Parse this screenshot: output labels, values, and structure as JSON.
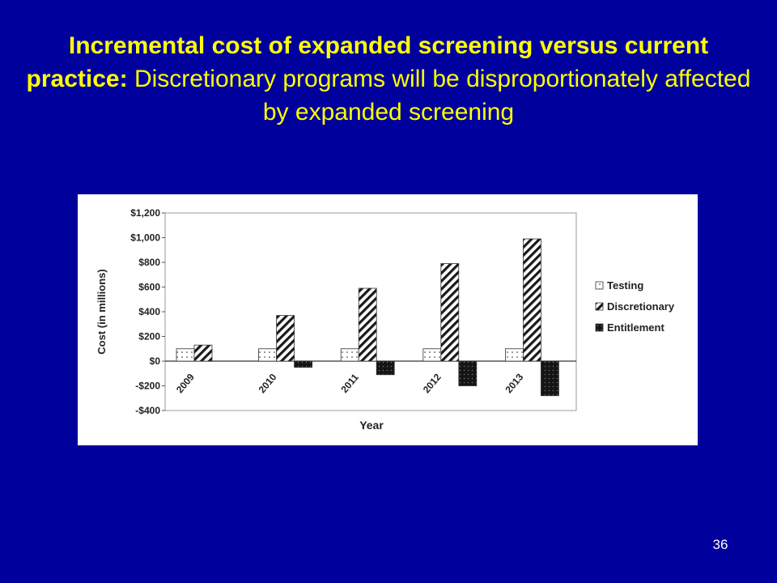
{
  "slide": {
    "title_bold": "Incremental cost of expanded screening versus current practice:",
    "title_normal": "Discretionary programs will be disproportionately affected by expanded screening",
    "page_number": "36"
  },
  "chart_data": {
    "type": "bar",
    "xlabel": "Year",
    "ylabel": "Cost (in millions)",
    "ylim": [
      -400,
      1200
    ],
    "yticks": [
      1200,
      1000,
      800,
      600,
      400,
      200,
      0,
      -200,
      -400
    ],
    "ytick_labels": [
      "$1,200",
      "$1,000",
      "$800",
      "$600",
      "$400",
      "$200",
      "$0",
      "-$200",
      "-$400"
    ],
    "categories": [
      "2009",
      "2010",
      "2011",
      "2012",
      "2013"
    ],
    "grid": false,
    "legend_position": "right",
    "series": [
      {
        "name": "Testing",
        "values": [
          100,
          100,
          100,
          100,
          100
        ],
        "pattern": "dots"
      },
      {
        "name": "Discretionary",
        "values": [
          130,
          370,
          590,
          790,
          990
        ],
        "pattern": "hatch"
      },
      {
        "name": "Entitlement",
        "values": [
          0,
          -50,
          -110,
          -200,
          -280
        ],
        "pattern": "dark"
      }
    ]
  }
}
